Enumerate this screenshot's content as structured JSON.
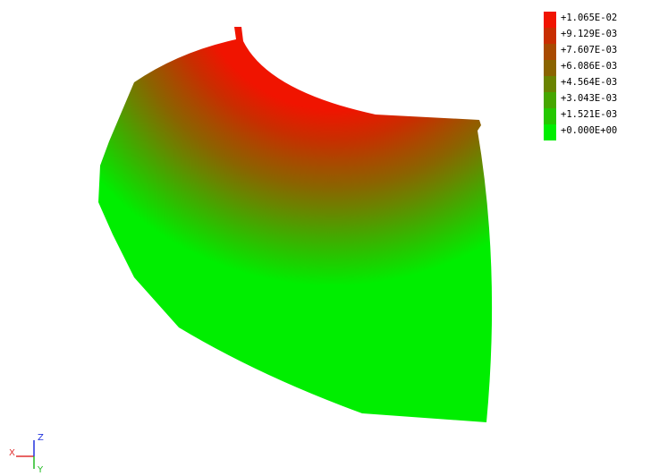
{
  "legend": {
    "entries": [
      {
        "label": "+1.065E-02",
        "color": "#f01400"
      },
      {
        "label": "+9.129E-03",
        "color": "#c82e00"
      },
      {
        "label": "+7.607E-03",
        "color": "#a84a00"
      },
      {
        "label": "+6.086E-03",
        "color": "#8a6400"
      },
      {
        "label": "+4.564E-03",
        "color": "#6a8400"
      },
      {
        "label": "+3.043E-03",
        "color": "#46a600"
      },
      {
        "label": "+1.521E-03",
        "color": "#24c800"
      },
      {
        "label": "+0.000E+00",
        "color": "#00ee00"
      }
    ]
  },
  "triad": {
    "x_label": "X",
    "y_label": "Y",
    "z_label": "Z",
    "x_color": "#e03030",
    "y_color": "#22bb22",
    "z_color": "#2233dd"
  }
}
